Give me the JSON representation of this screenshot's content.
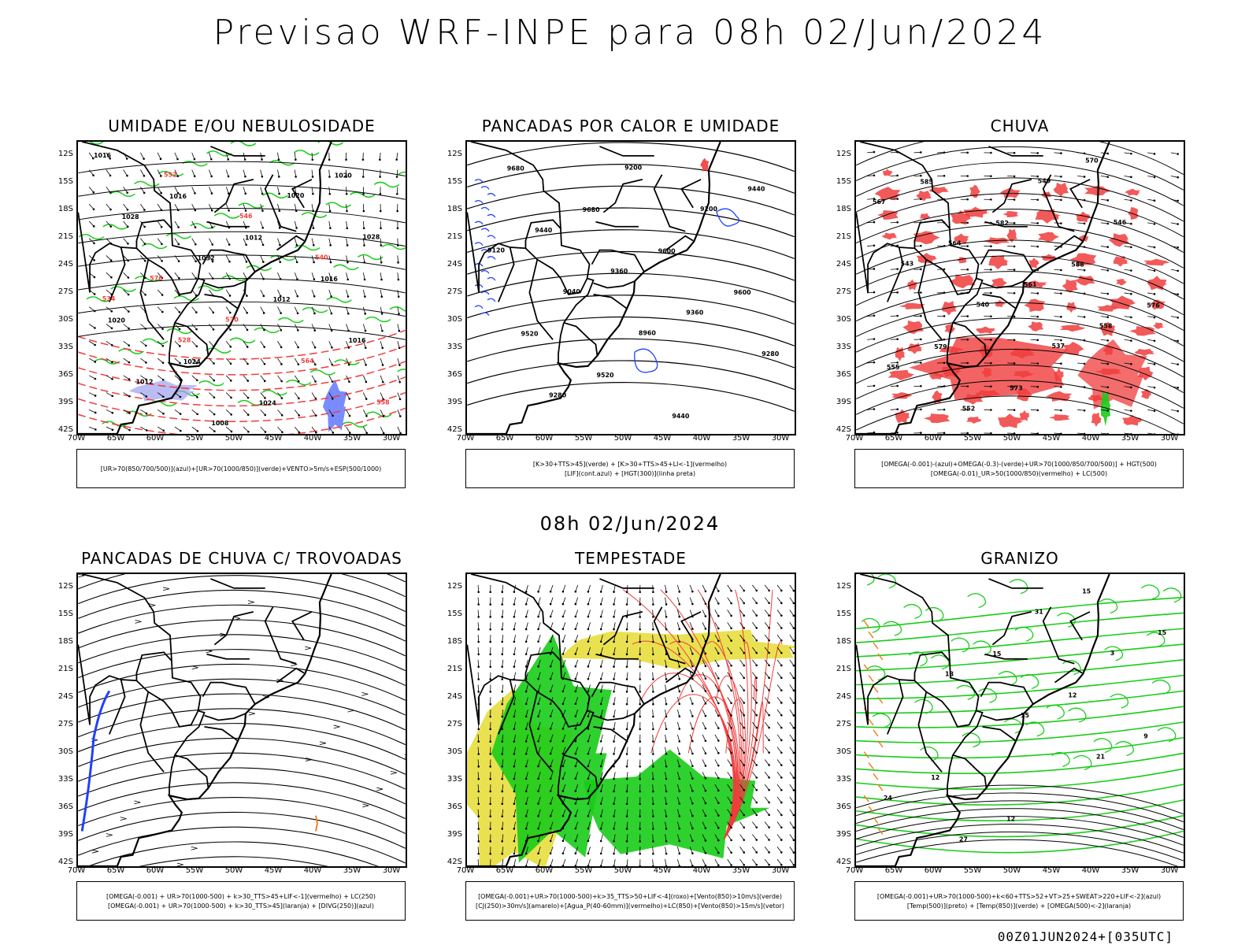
{
  "title": "Previsao WRF-INPE  para 08h 02/Jun/2024",
  "mid_title": "08h 02/Jun/2024",
  "footer": "00Z01JUN2024+[035UTC]",
  "lat_labels": [
    "12S",
    "15S",
    "18S",
    "21S",
    "24S",
    "27S",
    "30S",
    "33S",
    "36S",
    "39S",
    "42S"
  ],
  "lon_labels": [
    "70W",
    "65W",
    "60W",
    "55W",
    "50W",
    "45W",
    "40W",
    "35W",
    "30W"
  ],
  "colors": {
    "red": "#f03c3c",
    "green": "#18cc18",
    "blue": "#2040ff",
    "yellow": "#e6dc32",
    "orange": "#f08020",
    "lavender": "#a0a0f0"
  },
  "panels": [
    {
      "title": "UMIDADE E/OU NEBULOSIDADE",
      "legend": [
        "[UR>70(850/700/500)](azul)+[UR>70(1000/850)](verde)+VENTO>5m/s+ESP(500/1000)"
      ],
      "contour_labels": [
        "1016",
        "1016",
        "1012",
        "1016",
        "1020",
        "1024",
        "1024",
        "1020",
        "1028",
        "1032",
        "1012",
        "1016",
        "1012",
        "1008",
        "1020",
        "1028",
        "576",
        "570",
        "564",
        "558",
        "552",
        "546",
        "540",
        "534",
        "528"
      ]
    },
    {
      "title": "PANCADAS POR CALOR E UMIDADE",
      "legend": [
        "[K>30+TTS>45](verde) + [K>30+TTS>45+LI<-1](vermelho)",
        "[LIF](cont.azul) + [HGT(300)](linha preta)"
      ],
      "contour_labels": [
        "9680",
        "9680",
        "9600",
        "9600",
        "9520",
        "9520",
        "9440",
        "9440",
        "9440",
        "9360",
        "9360",
        "9280",
        "9280",
        "9200",
        "9200",
        "9120",
        "9040",
        "8960"
      ]
    },
    {
      "title": "CHUVA",
      "legend": [
        "[OMEGA(-0.001)-(azul)+OMEGA(-0.3)-(verde)+UR>70(1000/850/700/500)] + HGT(500)",
        "[OMEGA(-0.01)_UR>50(1000/850)(vermelho) + LC(500)"
      ],
      "contour_labels": [
        "585",
        "582",
        "588",
        "576",
        "579",
        "573",
        "570",
        "567",
        "564",
        "561",
        "558",
        "555",
        "552",
        "549",
        "546",
        "543",
        "540",
        "537"
      ]
    },
    {
      "title": "PANCADAS DE CHUVA C/ TROVOADAS",
      "legend": [
        "[OMEGA(-0.001) + UR>70(1000-500) + k>30_TTS>45+LIF<-1](vermelho) + LC(250)",
        "[OMEGA(-0.001) + UR>70(1000-500) + k>30_TTS>45](laranja) + [DIVG(250)](azul)"
      ],
      "contour_labels": []
    },
    {
      "title": "TEMPESTADE",
      "legend": [
        "[OMEGA(-0.001)+UR>70(1000-500)+k>35_TTS>50+LIF<-4](roxo)+[Vento(850)>10m/s](verde)",
        "[CJ(250)>30m/s](amarelo)+[Agua_P(40-60mm)](vermelho)+LC(850)+[Vento(850)>15m/s](vetor)"
      ],
      "contour_labels": []
    },
    {
      "title": "GRANIZO",
      "legend": [
        "[OMEGA(-0.001)+UR>70(1000-500)+k<60+TTS>52+VT>25+SWEAT>220+LIF<-2](azul)",
        "[Temp(500)](preto) + [Temp(850)](verde) + [OMEGA(500)<-2](laranja)"
      ],
      "contour_labels": [
        "15",
        "12",
        "9",
        "12",
        "12",
        "15",
        "15",
        "18",
        "15",
        "21",
        "24",
        "27",
        "31",
        "3"
      ]
    }
  ]
}
